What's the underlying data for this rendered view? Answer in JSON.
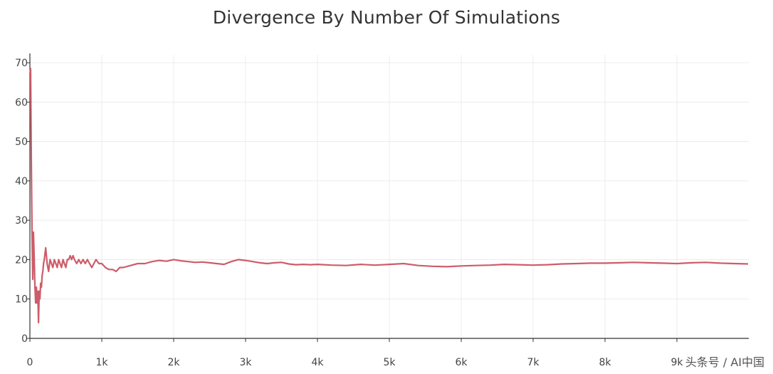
{
  "chart_data": {
    "type": "line",
    "title": "Divergence By Number Of Simulations",
    "xlabel": "",
    "ylabel": "",
    "xlim": [
      0,
      10000
    ],
    "ylim": [
      0,
      72
    ],
    "x_ticks": [
      0,
      1000,
      2000,
      3000,
      4000,
      5000,
      6000,
      7000,
      8000,
      9000
    ],
    "x_tick_labels": [
      "0",
      "1k",
      "2k",
      "3k",
      "4k",
      "5k",
      "6k",
      "7k",
      "8k",
      "9k"
    ],
    "y_ticks": [
      0,
      10,
      20,
      30,
      40,
      50,
      60,
      70
    ],
    "y_tick_labels": [
      "0",
      "10",
      "20",
      "30",
      "40",
      "50",
      "60",
      "70"
    ],
    "grid": true,
    "series": [
      {
        "name": "Divergence",
        "color": "#cd5c6a",
        "x": [
          1,
          10,
          20,
          30,
          40,
          50,
          60,
          70,
          80,
          90,
          100,
          110,
          120,
          130,
          140,
          150,
          160,
          170,
          180,
          190,
          200,
          220,
          240,
          260,
          280,
          300,
          320,
          340,
          360,
          380,
          400,
          420,
          440,
          460,
          480,
          500,
          520,
          540,
          560,
          580,
          600,
          620,
          650,
          680,
          710,
          740,
          770,
          800,
          830,
          860,
          890,
          920,
          960,
          1000,
          1050,
          1100,
          1150,
          1200,
          1250,
          1300,
          1400,
          1500,
          1600,
          1700,
          1800,
          1900,
          2000,
          2100,
          2200,
          2300,
          2400,
          2500,
          2600,
          2700,
          2800,
          2900,
          3000,
          3100,
          3200,
          3300,
          3400,
          3500,
          3600,
          3700,
          3800,
          3900,
          4000,
          4200,
          4400,
          4600,
          4800,
          5000,
          5200,
          5400,
          5600,
          5800,
          6000,
          6200,
          6400,
          6600,
          6800,
          7000,
          7200,
          7400,
          7600,
          7800,
          8000,
          8200,
          8400,
          8600,
          8800,
          9000,
          9200,
          9400,
          9600,
          9800,
          9990
        ],
        "y": [
          67,
          68.5,
          45,
          27,
          15,
          27,
          20,
          13,
          9,
          13,
          9,
          12,
          4,
          12,
          10,
          14,
          13,
          16,
          17,
          19,
          20,
          23,
          19,
          17,
          20,
          19,
          18,
          20,
          19,
          18,
          20,
          19,
          18,
          20,
          19,
          18,
          20,
          20,
          21,
          20,
          21,
          20,
          19,
          20,
          19,
          20,
          19,
          20,
          19,
          18,
          19,
          20,
          19,
          19,
          18,
          17.5,
          17.5,
          17,
          18,
          18,
          18.5,
          19,
          19,
          19.5,
          19.8,
          19.6,
          20,
          19.7,
          19.5,
          19.3,
          19.4,
          19.2,
          19,
          18.8,
          19.5,
          20,
          19.8,
          19.5,
          19.2,
          19,
          19.2,
          19.3,
          18.9,
          18.7,
          18.8,
          18.7,
          18.8,
          18.6,
          18.5,
          18.8,
          18.6,
          18.8,
          19,
          18.5,
          18.3,
          18.2,
          18.4,
          18.5,
          18.6,
          18.8,
          18.7,
          18.6,
          18.7,
          18.9,
          19,
          19.1,
          19.1,
          19.2,
          19.3,
          19.2,
          19.1,
          19,
          19.2,
          19.3,
          19.1,
          19,
          18.9
        ]
      }
    ]
  },
  "watermark": "头条号 / AI中国"
}
